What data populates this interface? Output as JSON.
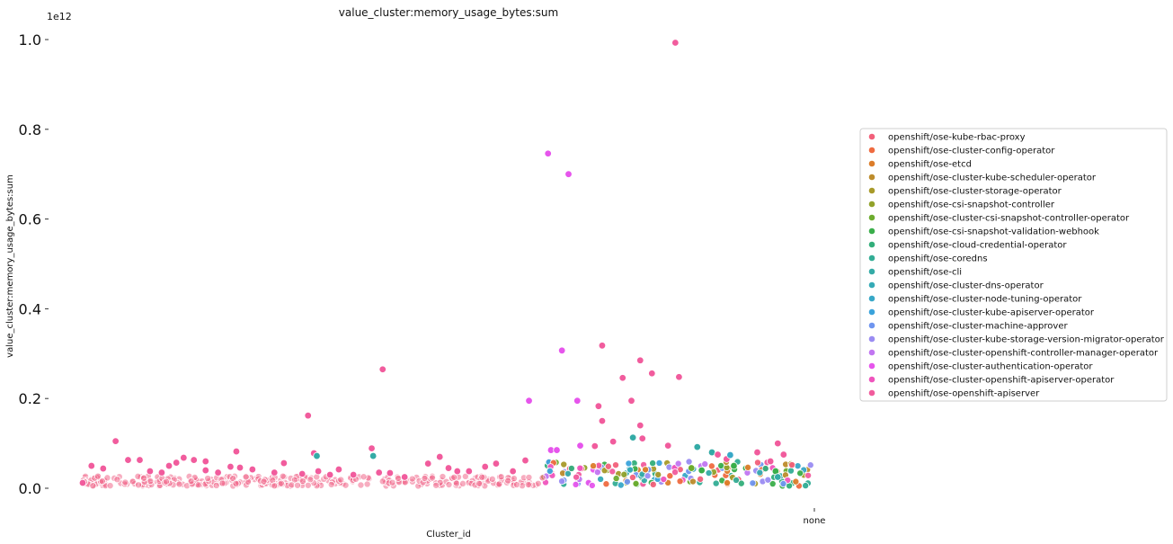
{
  "chart_data": {
    "type": "scatter",
    "title": "value_cluster:memory_usage_bytes:sum",
    "xlabel": "Cluster_id",
    "ylabel": "value_cluster:memory_usage_bytes:sum",
    "y_offset_label": "1e12",
    "x_tick_labels": [
      "none"
    ],
    "y_tick_labels": [
      "0.0",
      "0.2",
      "0.4",
      "0.6",
      "0.8",
      "1.0"
    ],
    "ylim": [
      0,
      1.0
    ],
    "grid": false,
    "legend_position": "right",
    "series": [
      {
        "name": "openshift/ose-kube-rbac-proxy",
        "color": "#f2607a"
      },
      {
        "name": "openshift/ose-cluster-config-operator",
        "color": "#ef6b40"
      },
      {
        "name": "openshift/ose-etcd",
        "color": "#dc7d2a"
      },
      {
        "name": "openshift/ose-cluster-kube-scheduler-operator",
        "color": "#bd8c2c"
      },
      {
        "name": "openshift/ose-cluster-storage-operator",
        "color": "#a89a2a"
      },
      {
        "name": "openshift/ose-csi-snapshot-controller",
        "color": "#92a22a"
      },
      {
        "name": "openshift/ose-cluster-csi-snapshot-controller-operator",
        "color": "#6dac2e"
      },
      {
        "name": "openshift/ose-csi-snapshot-validation-webhook",
        "color": "#3aae4a"
      },
      {
        "name": "openshift/ose-cloud-credential-operator",
        "color": "#32ae7a"
      },
      {
        "name": "openshift/ose-coredns",
        "color": "#33ad95"
      },
      {
        "name": "openshift/ose-cli",
        "color": "#34aba6"
      },
      {
        "name": "openshift/ose-cluster-dns-operator",
        "color": "#35aab6"
      },
      {
        "name": "openshift/ose-cluster-node-tuning-operator",
        "color": "#38a8c7"
      },
      {
        "name": "openshift/ose-cluster-kube-apiserver-operator",
        "color": "#3aa3db"
      },
      {
        "name": "openshift/ose-cluster-machine-approver",
        "color": "#6f95ef"
      },
      {
        "name": "openshift/ose-cluster-kube-storage-version-migrator-operator",
        "color": "#9a8cf2"
      },
      {
        "name": "openshift/ose-cluster-openshift-controller-manager-operator",
        "color": "#c176f1"
      },
      {
        "name": "openshift/ose-cluster-authentication-operator",
        "color": "#e655ec"
      },
      {
        "name": "openshift/ose-cluster-openshift-apiserver-operator",
        "color": "#ef55bd"
      },
      {
        "name": "openshift/ose-openshift-apiserver",
        "color": "#f15c9d"
      }
    ],
    "points": [
      {
        "x": 0.0,
        "y": 0.012,
        "s": 19
      },
      {
        "x": 0.012,
        "y": 0.05,
        "s": 19
      },
      {
        "x": 0.028,
        "y": 0.044,
        "s": 19
      },
      {
        "x": 0.045,
        "y": 0.105,
        "s": 19
      },
      {
        "x": 0.062,
        "y": 0.063,
        "s": 19
      },
      {
        "x": 0.078,
        "y": 0.063,
        "s": 19
      },
      {
        "x": 0.092,
        "y": 0.038,
        "s": 19
      },
      {
        "x": 0.108,
        "y": 0.035,
        "s": 19
      },
      {
        "x": 0.118,
        "y": 0.05,
        "s": 19
      },
      {
        "x": 0.128,
        "y": 0.057,
        "s": 19
      },
      {
        "x": 0.138,
        "y": 0.068,
        "s": 19
      },
      {
        "x": 0.152,
        "y": 0.063,
        "s": 19
      },
      {
        "x": 0.168,
        "y": 0.06,
        "s": 19
      },
      {
        "x": 0.168,
        "y": 0.04,
        "s": 19
      },
      {
        "x": 0.185,
        "y": 0.035,
        "s": 19
      },
      {
        "x": 0.202,
        "y": 0.048,
        "s": 19
      },
      {
        "x": 0.21,
        "y": 0.082,
        "s": 19
      },
      {
        "x": 0.215,
        "y": 0.046,
        "s": 19
      },
      {
        "x": 0.232,
        "y": 0.042,
        "s": 19
      },
      {
        "x": 0.262,
        "y": 0.035,
        "s": 19
      },
      {
        "x": 0.275,
        "y": 0.056,
        "s": 19
      },
      {
        "x": 0.3,
        "y": 0.032,
        "s": 19
      },
      {
        "x": 0.308,
        "y": 0.162,
        "s": 19
      },
      {
        "x": 0.316,
        "y": 0.078,
        "s": 19
      },
      {
        "x": 0.32,
        "y": 0.072,
        "s": 10
      },
      {
        "x": 0.322,
        "y": 0.038,
        "s": 19
      },
      {
        "x": 0.338,
        "y": 0.03,
        "s": 19
      },
      {
        "x": 0.35,
        "y": 0.042,
        "s": 19
      },
      {
        "x": 0.37,
        "y": 0.03,
        "s": 19
      },
      {
        "x": 0.395,
        "y": 0.089,
        "s": 19
      },
      {
        "x": 0.397,
        "y": 0.072,
        "s": 10
      },
      {
        "x": 0.41,
        "y": 0.265,
        "s": 19
      },
      {
        "x": 0.405,
        "y": 0.035,
        "s": 19
      },
      {
        "x": 0.42,
        "y": 0.034,
        "s": 19
      },
      {
        "x": 0.44,
        "y": 0.025,
        "s": 19
      },
      {
        "x": 0.472,
        "y": 0.055,
        "s": 19
      },
      {
        "x": 0.488,
        "y": 0.07,
        "s": 19
      },
      {
        "x": 0.5,
        "y": 0.045,
        "s": 19
      },
      {
        "x": 0.512,
        "y": 0.038,
        "s": 19
      },
      {
        "x": 0.528,
        "y": 0.038,
        "s": 19
      },
      {
        "x": 0.55,
        "y": 0.048,
        "s": 19
      },
      {
        "x": 0.565,
        "y": 0.055,
        "s": 19
      },
      {
        "x": 0.588,
        "y": 0.038,
        "s": 19
      },
      {
        "x": 0.605,
        "y": 0.062,
        "s": 19
      },
      {
        "x": 0.61,
        "y": 0.195,
        "s": 17
      },
      {
        "x": 0.636,
        "y": 0.746,
        "s": 17
      },
      {
        "x": 0.64,
        "y": 0.085,
        "s": 17
      },
      {
        "x": 0.648,
        "y": 0.085,
        "s": 17
      },
      {
        "x": 0.655,
        "y": 0.307,
        "s": 17
      },
      {
        "x": 0.664,
        "y": 0.7,
        "s": 17
      },
      {
        "x": 0.676,
        "y": 0.195,
        "s": 17
      },
      {
        "x": 0.68,
        "y": 0.095,
        "s": 17
      },
      {
        "x": 0.7,
        "y": 0.094,
        "s": 19
      },
      {
        "x": 0.705,
        "y": 0.183,
        "s": 19
      },
      {
        "x": 0.71,
        "y": 0.318,
        "s": 19
      },
      {
        "x": 0.71,
        "y": 0.15,
        "s": 19
      },
      {
        "x": 0.725,
        "y": 0.104,
        "s": 19
      },
      {
        "x": 0.738,
        "y": 0.246,
        "s": 19
      },
      {
        "x": 0.75,
        "y": 0.195,
        "s": 19
      },
      {
        "x": 0.752,
        "y": 0.113,
        "s": 10
      },
      {
        "x": 0.762,
        "y": 0.285,
        "s": 19
      },
      {
        "x": 0.762,
        "y": 0.14,
        "s": 19
      },
      {
        "x": 0.765,
        "y": 0.111,
        "s": 19
      },
      {
        "x": 0.778,
        "y": 0.256,
        "s": 19
      },
      {
        "x": 0.8,
        "y": 0.095,
        "s": 19
      },
      {
        "x": 0.81,
        "y": 0.993,
        "s": 19
      },
      {
        "x": 0.815,
        "y": 0.248,
        "s": 19
      },
      {
        "x": 0.84,
        "y": 0.092,
        "s": 10
      },
      {
        "x": 0.86,
        "y": 0.08,
        "s": 10
      },
      {
        "x": 0.868,
        "y": 0.075,
        "s": 19
      },
      {
        "x": 0.88,
        "y": 0.065,
        "s": 19
      },
      {
        "x": 0.885,
        "y": 0.074,
        "s": 12
      },
      {
        "x": 0.922,
        "y": 0.08,
        "s": 19
      },
      {
        "x": 0.94,
        "y": 0.06,
        "s": 19
      },
      {
        "x": 0.95,
        "y": 0.1,
        "s": 19
      },
      {
        "x": 0.958,
        "y": 0.075,
        "s": 19
      },
      {
        "x": 0.947,
        "y": 0.038,
        "s": 7
      },
      {
        "x": 0.95,
        "y": 0.025,
        "s": 10
      },
      {
        "x": 0.846,
        "y": 0.04,
        "s": 7
      },
      {
        "x": 0.832,
        "y": 0.045,
        "s": 6
      },
      {
        "x": 0.89,
        "y": 0.05,
        "s": 7
      }
    ]
  }
}
